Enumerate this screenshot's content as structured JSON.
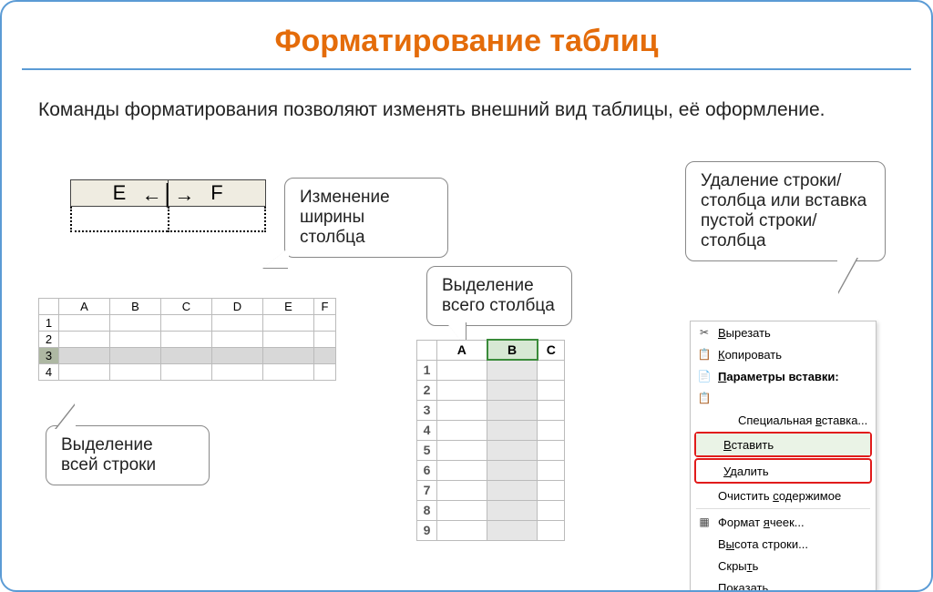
{
  "title": "Форматирование таблиц",
  "description": "Команды форматирования позволяют изменять внешний вид таблицы, её оформление.",
  "callouts": {
    "col_width": "Изменение ширины столбца",
    "select_column": "Выделение всего столбца",
    "select_row": "Выделение всей строки",
    "insert_delete": "Удаление строки/столбца или вставка пустой строки/столбца"
  },
  "col_width_demo": {
    "left_label": "E",
    "right_label": "F",
    "header_bg": "#efece1"
  },
  "row_select_sheet": {
    "columns": [
      "A",
      "B",
      "C",
      "D",
      "E",
      "F"
    ],
    "rows": [
      1,
      2,
      3,
      4
    ],
    "selected_row": 3,
    "selected_bg": "#d8d8d8",
    "selected_rowhdr_bg": "#aeb8a3"
  },
  "col_select_sheet": {
    "columns": [
      "A",
      "B",
      "C"
    ],
    "rows": [
      1,
      2,
      3,
      4,
      5,
      6,
      7,
      8,
      9
    ],
    "selected_col": "B",
    "selected_header_bg": "#d7e8d4",
    "selected_header_border": "#3a8b3a",
    "selected_cell_bg": "#e6e6e6"
  },
  "context_menu": {
    "items": [
      {
        "icon": "✂",
        "label": "Вырезать",
        "u": 0
      },
      {
        "icon": "📋",
        "label": "Копировать",
        "u": 0
      },
      {
        "icon": "📄",
        "label": "Параметры вставки:",
        "bold": true,
        "u": 0
      },
      {
        "icon": "📋",
        "label": "",
        "indent": true
      },
      {
        "label": "Специальная вставка...",
        "indent": true,
        "u": 12
      },
      {
        "label": "Вставить",
        "boxed": true,
        "highlight": true,
        "u": 0
      },
      {
        "label": "Удалить",
        "boxed": true,
        "u": 0
      },
      {
        "label": "Очистить содержимое",
        "u": 9
      },
      {
        "sep": true
      },
      {
        "icon": "▦",
        "label": "Формат ячеек...",
        "u": 7
      },
      {
        "label": "Высота строки...",
        "u": 1
      },
      {
        "label": "Скрыть",
        "u": 4
      },
      {
        "label": "Показать",
        "u": 1
      }
    ],
    "highlight_bg": "#eaf3e6",
    "box_border": "#e11b1b"
  },
  "colors": {
    "slide_border": "#5b9bd5",
    "title_color": "#e46c0a",
    "divider": "#5b9bd5"
  }
}
